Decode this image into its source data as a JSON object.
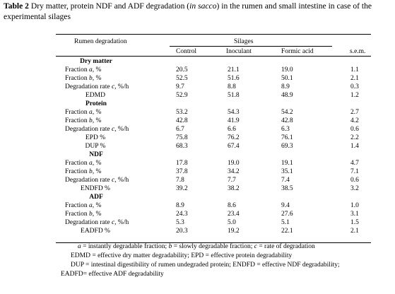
{
  "title": {
    "label": "Table 2",
    "text_before_italic": " Dry matter, protein NDF and ADF degradation (",
    "italic": "in sacco",
    "text_after_italic": ") in the rumen and small intestine in case of the experimental silages"
  },
  "header": {
    "row_label": "Rumen degradation",
    "group_label": "Silages",
    "columns": [
      "Control",
      "Inoculant",
      "Formic acid",
      "s.e.m."
    ]
  },
  "sections": [
    {
      "heading": "Dry matter",
      "rows": [
        {
          "label": "Fraction a, %",
          "values": [
            "20.5",
            "21.1",
            "19.0",
            "1.1"
          ]
        },
        {
          "label": "Fraction b, %",
          "values": [
            "52.5",
            "51.6",
            "50.1",
            "2.1"
          ]
        },
        {
          "label": "Degradation rate c, %/h",
          "values": [
            "9.7",
            "8.8",
            "8.9",
            "0.3"
          ]
        },
        {
          "label": "EDMD",
          "values": [
            "52.9",
            "51.8",
            "48.9",
            "1.2"
          ]
        }
      ]
    },
    {
      "heading": "Protein",
      "rows": [
        {
          "label": "Fraction a, %",
          "values": [
            "53.2",
            "54.3",
            "54.2",
            "2.7"
          ]
        },
        {
          "label": "Fraction b, %",
          "values": [
            "42.8",
            "41.9",
            "42.8",
            "4.2"
          ]
        },
        {
          "label": "Degradation rate c, %/h",
          "values": [
            "6.7",
            "6.6",
            "6.3",
            "0.6"
          ]
        },
        {
          "label": "EPD %",
          "values": [
            "75.8",
            "76.2",
            "76.1",
            "2.2"
          ]
        },
        {
          "label": "DUP %",
          "values": [
            "68.3",
            "67.4",
            "69.3",
            "1.4"
          ]
        }
      ]
    },
    {
      "heading": "NDF",
      "rows": [
        {
          "label": "Fraction a, %",
          "values": [
            "17.8",
            "19.0",
            "19.1",
            "4.7"
          ]
        },
        {
          "label": "Fraction b, %",
          "values": [
            "37.8",
            "34.2",
            "35.1",
            "7.1"
          ]
        },
        {
          "label": "Degradation rate c, %/h",
          "values": [
            "7.8",
            "7.7",
            "7.4",
            "0.6"
          ]
        },
        {
          "label": "ENDFD %",
          "values": [
            "39.2",
            "38.2",
            "38.5",
            "3.2"
          ]
        }
      ]
    },
    {
      "heading": "ADF",
      "rows": [
        {
          "label": "Fraction a, %",
          "values": [
            "8.9",
            "8.6",
            "9.4",
            "1.0"
          ]
        },
        {
          "label": "Fraction b, %",
          "values": [
            "24.3",
            "23.4",
            "27.6",
            "3.1"
          ]
        },
        {
          "label": "Degradation rate c, %/h",
          "values": [
            "5.3",
            "5.0",
            "5.1",
            "1.5"
          ]
        },
        {
          "label": "EADFD %",
          "values": [
            "20.3",
            "19.2",
            "22.1",
            "2.1"
          ]
        }
      ]
    }
  ],
  "footnotes": [
    "a = instantly degradable fraction; b = slowly degradable fraction; c = rate of degradation",
    "EDMD = effective dry matter degradability; EPD = effective protein degradability",
    "DUP = intestinal digestibility of rumen undegraded protein; ENDFD = effective NDF degradability;",
    "EADFD= effective ADF degradability"
  ]
}
